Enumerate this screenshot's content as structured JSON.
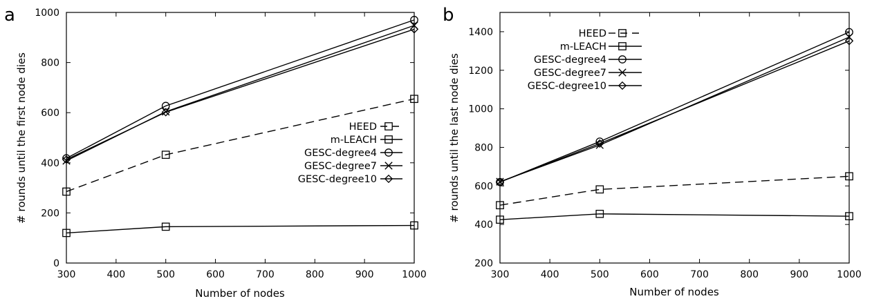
{
  "chart_data": [
    {
      "panel": "a",
      "type": "line",
      "xlabel": "Number of nodes",
      "ylabel": "# rounds until the first node dies",
      "xlim": [
        300,
        1000
      ],
      "ylim": [
        0,
        1000
      ],
      "xticks": [
        300,
        400,
        500,
        600,
        700,
        800,
        900,
        1000
      ],
      "yticks": [
        0,
        200,
        400,
        600,
        800,
        1000
      ],
      "legend_position": "right-middle",
      "grid": false,
      "x": [
        300,
        500,
        1000
      ],
      "series": [
        {
          "name": "HEED",
          "values": [
            285,
            432,
            655
          ],
          "marker": "square",
          "dash": "dashed"
        },
        {
          "name": "m-LEACH",
          "values": [
            120,
            145,
            150
          ],
          "marker": "square",
          "dash": "solid"
        },
        {
          "name": "GESC-degree4",
          "values": [
            418,
            627,
            970
          ],
          "marker": "circle",
          "dash": "solid"
        },
        {
          "name": "GESC-degree7",
          "values": [
            408,
            604,
            948
          ],
          "marker": "x",
          "dash": "solid"
        },
        {
          "name": "GESC-degree10",
          "values": [
            413,
            602,
            933
          ],
          "marker": "diamond",
          "dash": "solid"
        }
      ]
    },
    {
      "panel": "b",
      "type": "line",
      "xlabel": "Number of nodes",
      "ylabel": "# rounds until the last node dies",
      "xlim": [
        300,
        1000
      ],
      "ylim": [
        200,
        1500
      ],
      "xticks": [
        300,
        400,
        500,
        600,
        700,
        800,
        900,
        1000
      ],
      "yticks": [
        200,
        400,
        600,
        800,
        1000,
        1200,
        1400
      ],
      "legend_position": "top-left",
      "grid": false,
      "x": [
        300,
        500,
        1000
      ],
      "series": [
        {
          "name": "HEED",
          "values": [
            500,
            582,
            650
          ],
          "marker": "square",
          "dash": "dashed"
        },
        {
          "name": "m-LEACH",
          "values": [
            425,
            455,
            443
          ],
          "marker": "square",
          "dash": "solid"
        },
        {
          "name": "GESC-degree4",
          "values": [
            620,
            830,
            1398
          ],
          "marker": "circle",
          "dash": "solid"
        },
        {
          "name": "GESC-degree7",
          "values": [
            622,
            812,
            1372
          ],
          "marker": "x",
          "dash": "solid"
        },
        {
          "name": "GESC-degree10",
          "values": [
            620,
            820,
            1352
          ],
          "marker": "diamond",
          "dash": "solid"
        }
      ]
    }
  ]
}
